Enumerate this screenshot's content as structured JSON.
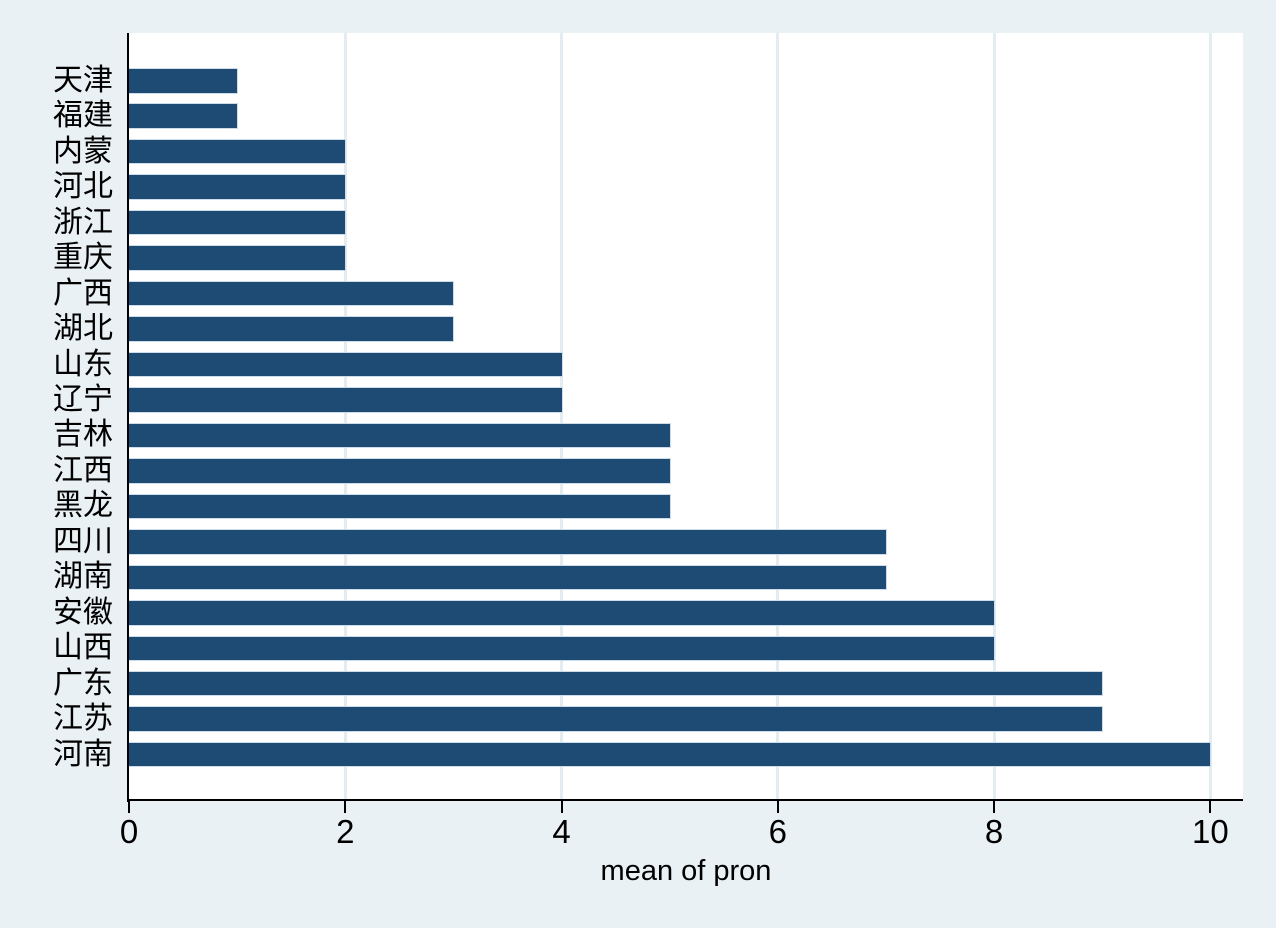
{
  "chart_data": {
    "type": "bar",
    "orientation": "horizontal",
    "title": "",
    "xlabel": "mean of pron",
    "ylabel": "",
    "categories": [
      "天津",
      "福建",
      "内蒙",
      "河北",
      "浙江",
      "重庆",
      "广西",
      "湖北",
      "山东",
      "辽宁",
      "吉林",
      "江西",
      "黑龙",
      "四川",
      "湖南",
      "安徽",
      "山西",
      "广东",
      "江苏",
      "河南"
    ],
    "values": [
      1,
      1,
      2,
      2,
      2,
      2,
      3,
      3,
      4,
      4,
      5,
      5,
      5,
      7,
      7,
      8,
      8,
      9,
      9,
      10
    ],
    "x_ticks": [
      0,
      2,
      4,
      6,
      8,
      10
    ],
    "xlim": [
      0,
      10.3
    ],
    "grid": "vertical-light",
    "legend": "none",
    "colors": {
      "page_background": "#eaf1f4",
      "plot_background": "#ffffff",
      "bar_fill": "#1d4b73",
      "bar_outline": "#ccdde9",
      "gridline": "#e2ecf1",
      "axis_line": "#000000",
      "text": "#000000"
    }
  }
}
